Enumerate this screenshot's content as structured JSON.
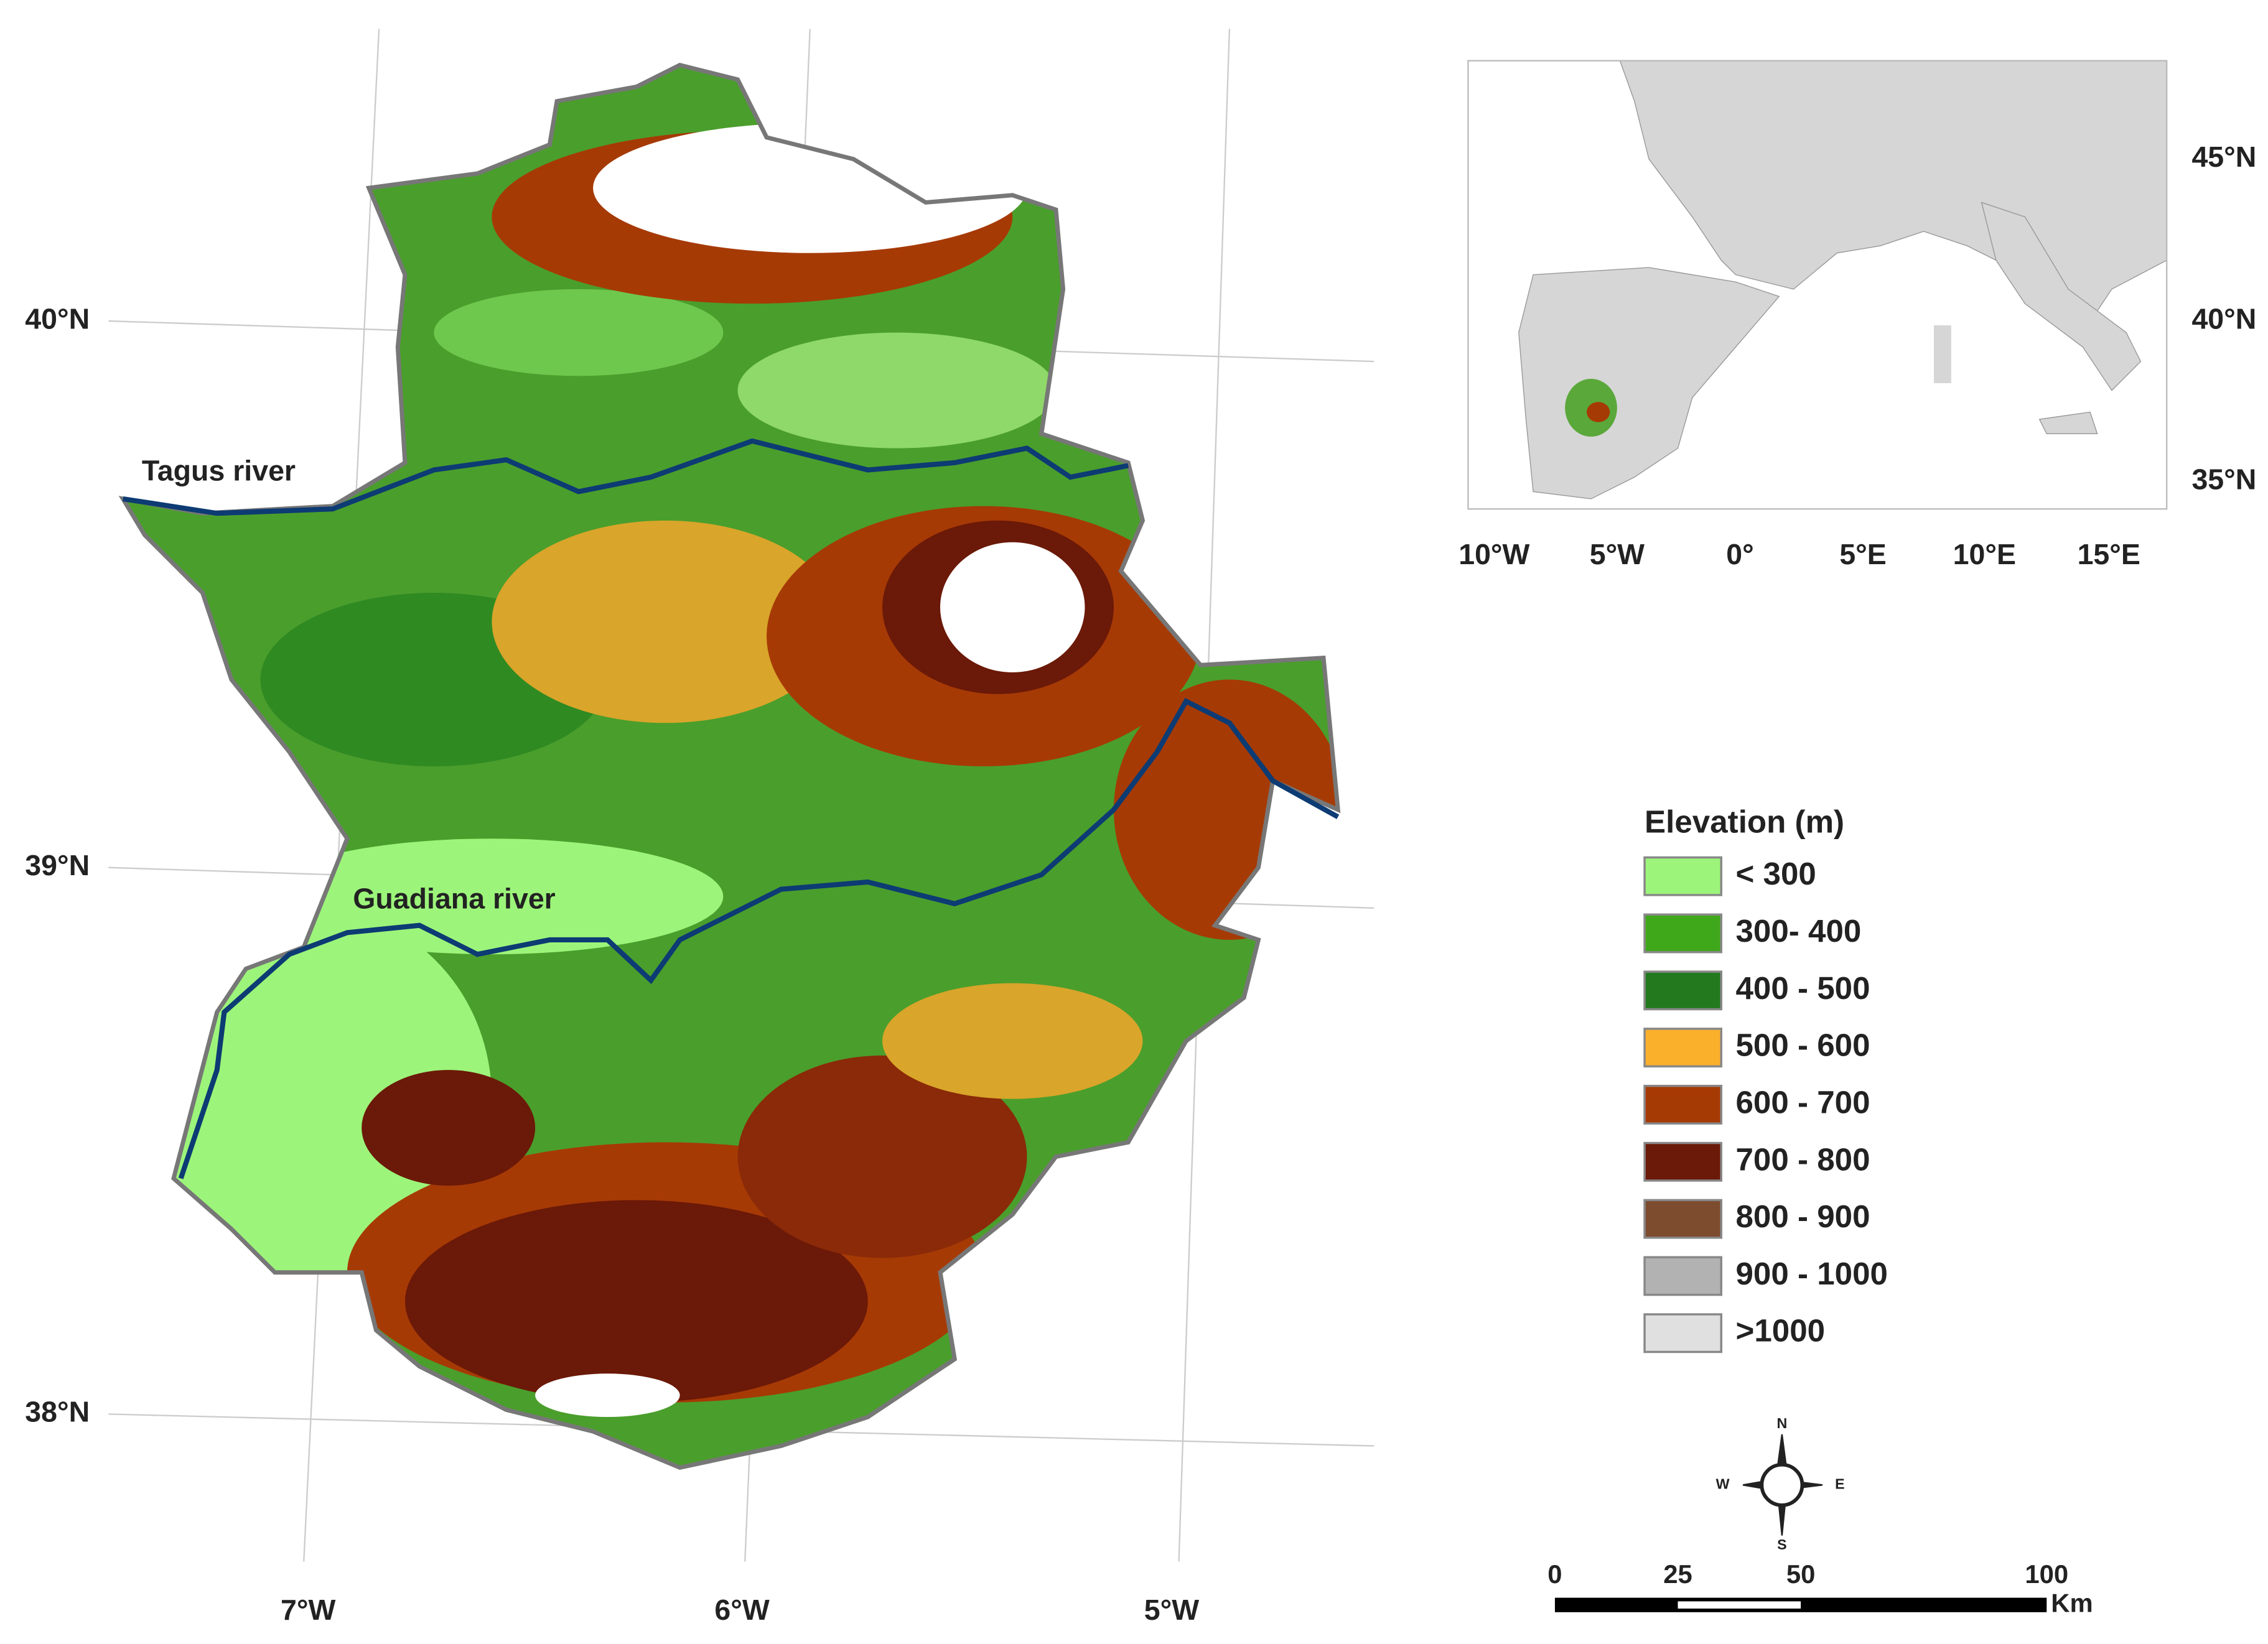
{
  "main_map": {
    "lat_labels": [
      "40°N",
      "39°N",
      "38°N"
    ],
    "lon_labels": [
      "7°W",
      "6°W",
      "5°W"
    ],
    "rivers": [
      "Tagus river",
      "Guadiana river"
    ]
  },
  "inset_map": {
    "lat_labels": [
      "45°N",
      "40°N",
      "35°N"
    ],
    "lon_labels": [
      "10°W",
      "5°W",
      "0°",
      "5°E",
      "10°E",
      "15°E"
    ]
  },
  "legend": {
    "title": "Elevation (m)",
    "items": [
      {
        "label": "< 300",
        "color": "#9cf57a"
      },
      {
        "label": "300- 400",
        "color": "#3fa81a"
      },
      {
        "label": "400 - 500",
        "color": "#237a1e"
      },
      {
        "label": "500 - 600",
        "color": "#fbb02b"
      },
      {
        "label": "600 - 700",
        "color": "#a63a05"
      },
      {
        "label": "700 - 800",
        "color": "#6b1908"
      },
      {
        "label": "800 - 900",
        "color": "#7d4c2e"
      },
      {
        "label": "900 - 1000",
        "color": "#b2b2b2"
      },
      {
        "label": ">1000",
        "color": "#e0e0e0"
      }
    ]
  },
  "compass": {
    "n": "N",
    "e": "E",
    "s": "S",
    "w": "W"
  },
  "scale_bar": {
    "ticks": [
      0,
      25,
      50,
      100
    ],
    "unit": "Km"
  }
}
